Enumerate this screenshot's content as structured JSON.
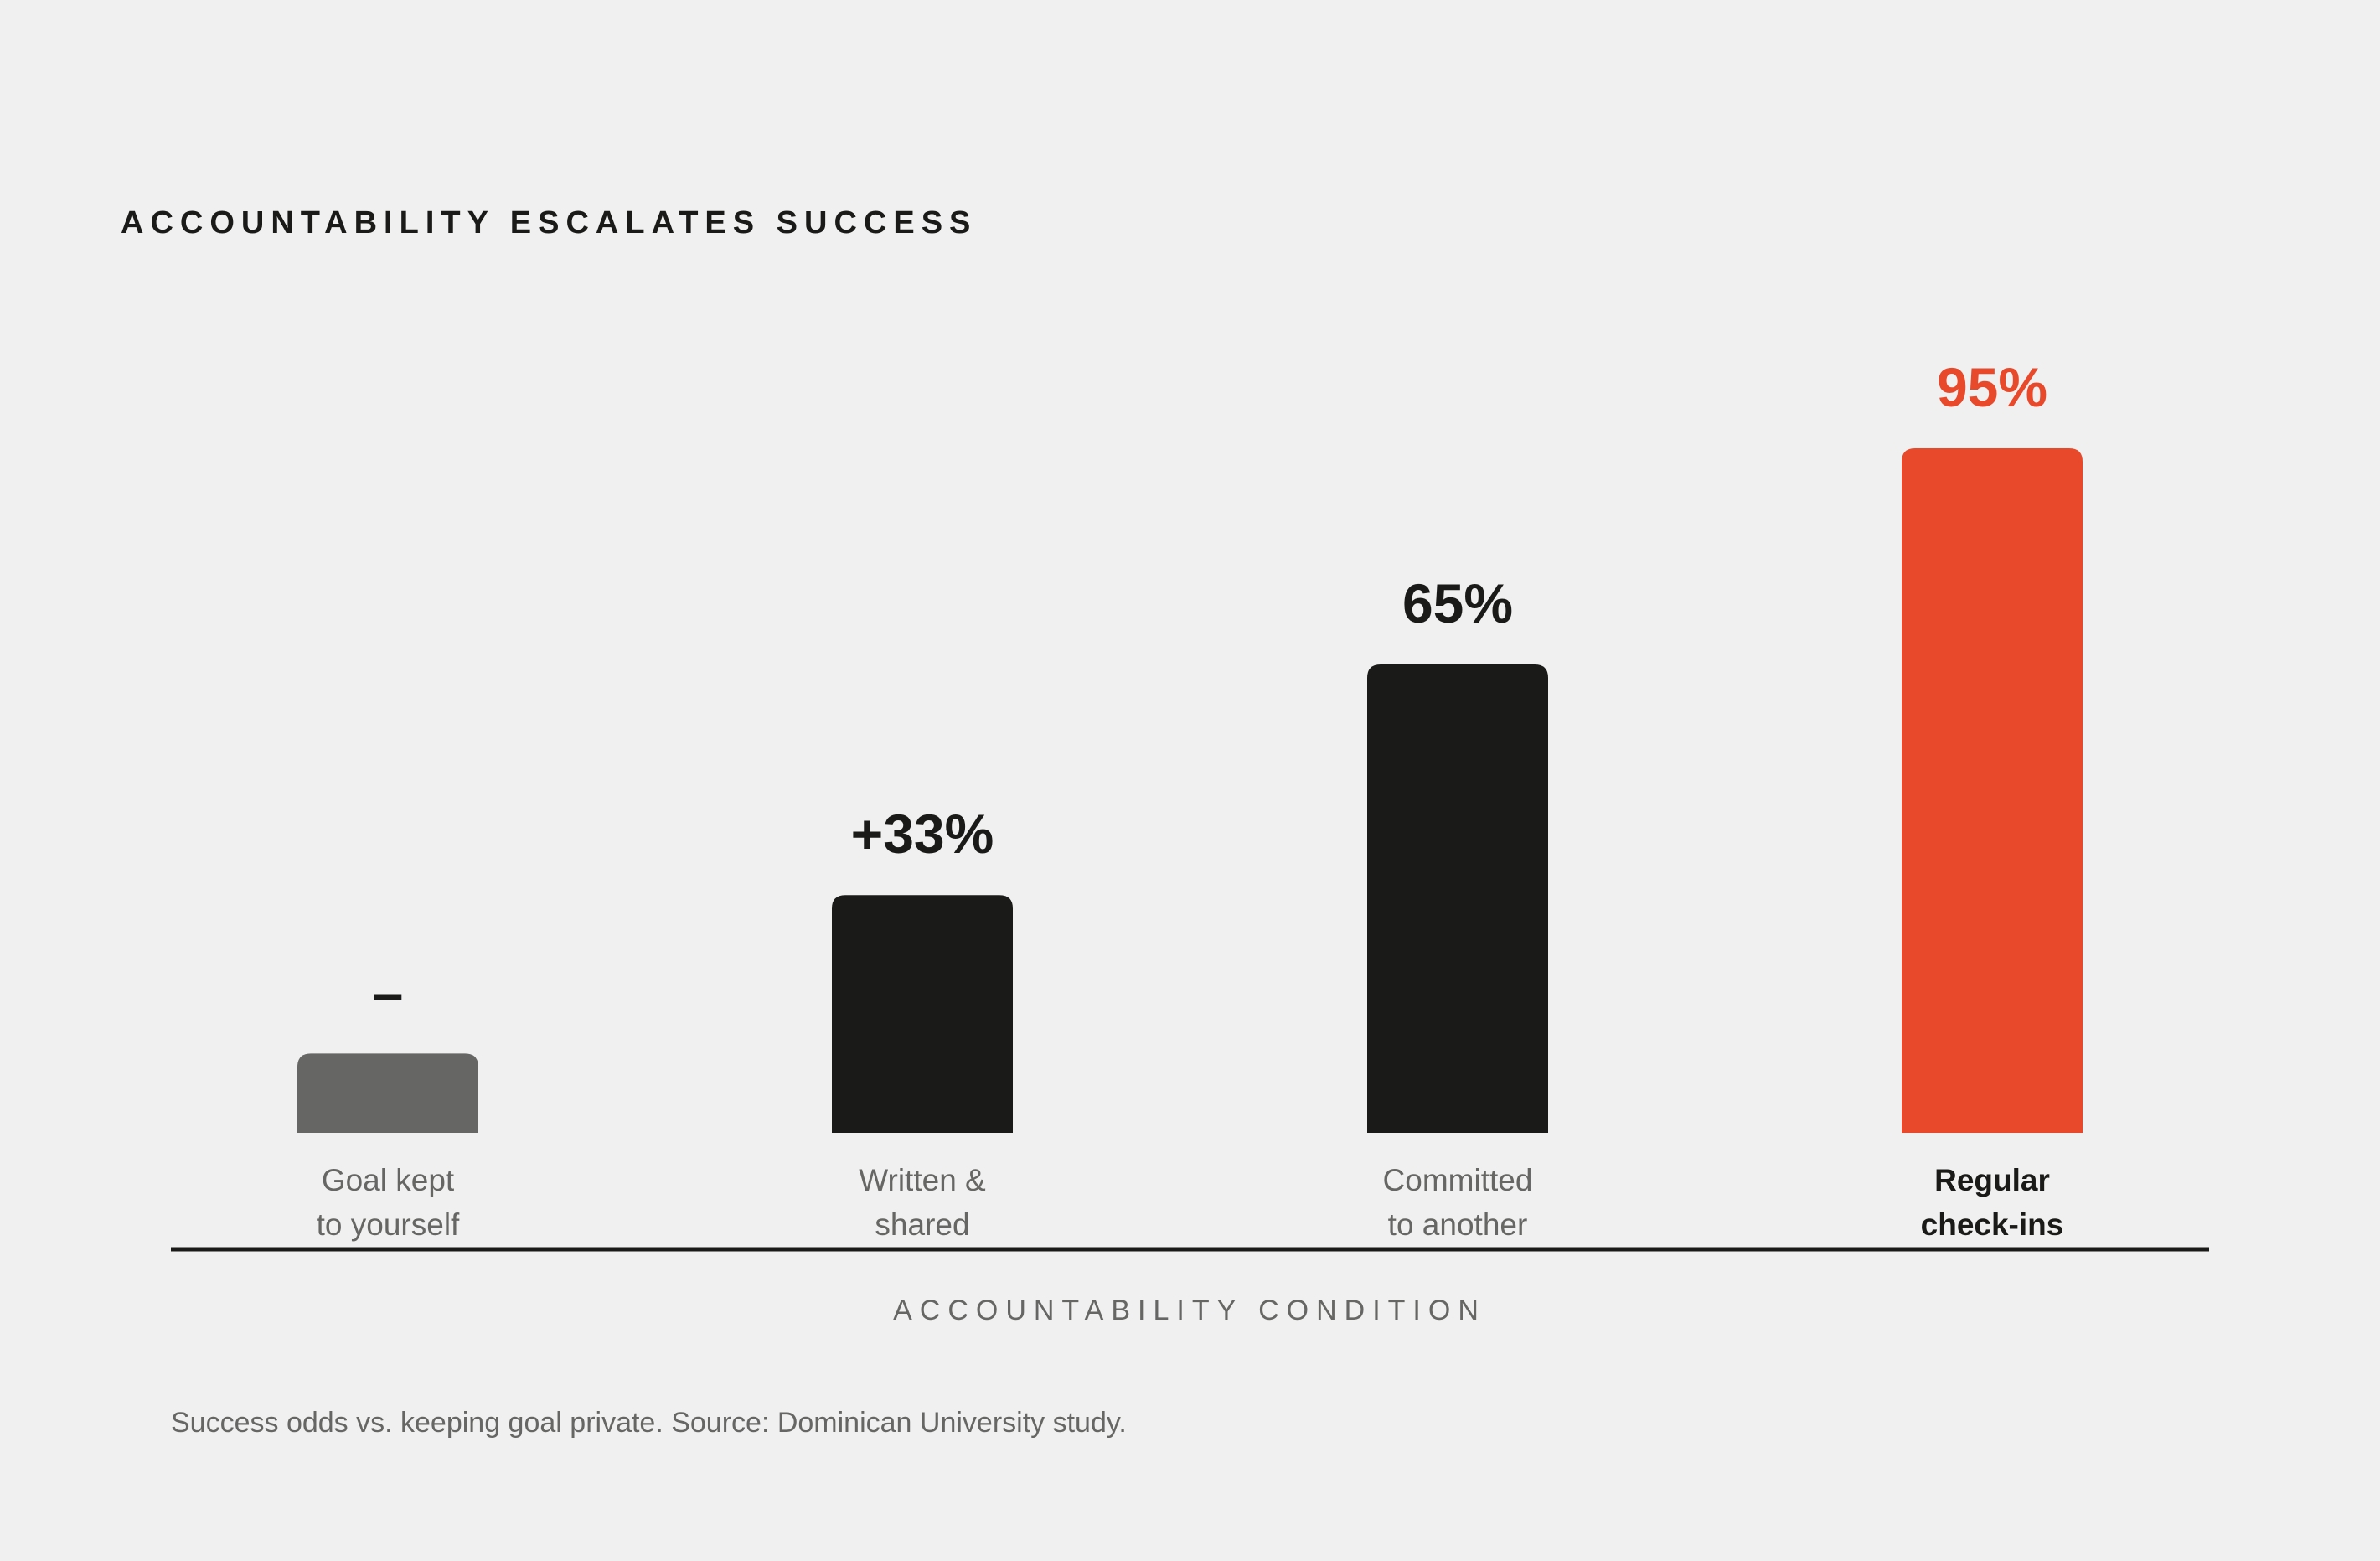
{
  "chart_data": {
    "type": "bar",
    "title": "ACCOUNTABILITY ESCALATES SUCCESS",
    "xlabel": "ACCOUNTABILITY CONDITION",
    "ylabel": "",
    "footnote": "Success odds vs. keeping goal private. Source: Dominican University study.",
    "ylim": [
      0,
      100
    ],
    "grid": false,
    "legend": "none",
    "categories": [
      [
        "Goal kept",
        "to yourself"
      ],
      [
        "Written &",
        "shared"
      ],
      [
        "Committed",
        "to another"
      ],
      [
        "Regular",
        "check-ins"
      ]
    ],
    "values": [
      11,
      33,
      65,
      95
    ],
    "value_labels": [
      "–",
      "+33%",
      "65%",
      "95%"
    ],
    "highlight_index": 3,
    "colors": {
      "baseline": "#666664",
      "standard": "#1a1a18",
      "highlight": "#e8492b",
      "text": "#1a1a18",
      "muted_text": "#666664",
      "background": "#f0f0f0"
    }
  }
}
